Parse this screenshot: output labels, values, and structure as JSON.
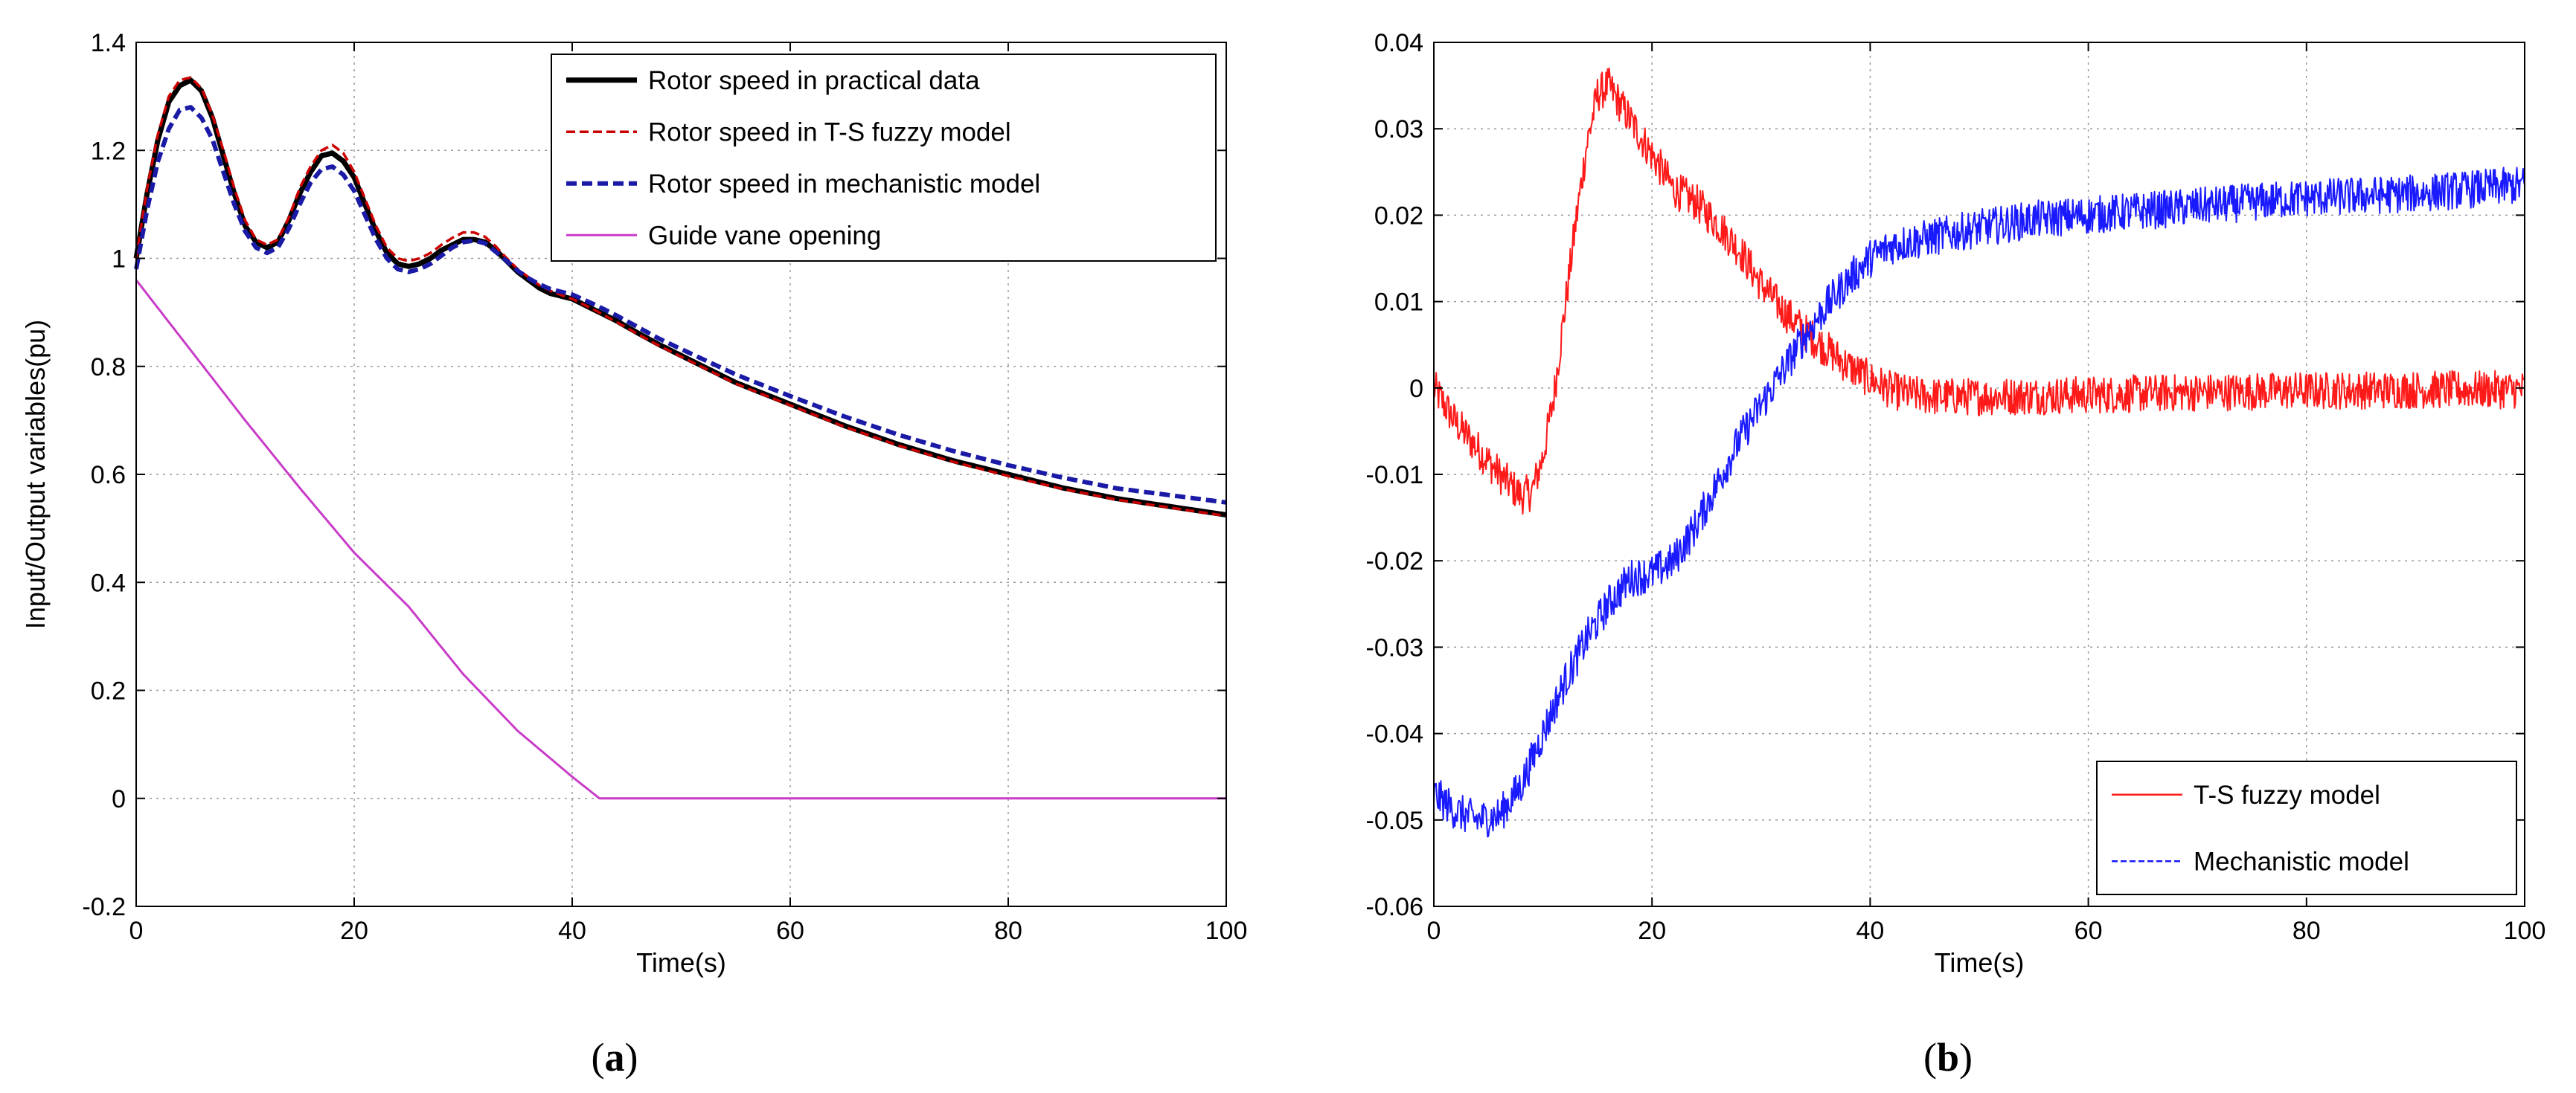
{
  "figure": {
    "panels": [
      {
        "caption_open": "(",
        "caption_letter": "a",
        "caption_close": ")"
      },
      {
        "caption_open": "(",
        "caption_letter": "b",
        "caption_close": ")"
      }
    ]
  },
  "chart_data": [
    {
      "type": "line",
      "title": "",
      "xlabel": "Time(s)",
      "ylabel": "Input/Output variables(pu)",
      "xlim": [
        0,
        100
      ],
      "ylim": [
        -0.2,
        1.4
      ],
      "xticks": [
        0,
        20,
        40,
        60,
        80,
        100
      ],
      "yticks": [
        -0.2,
        0,
        0.2,
        0.4,
        0.6,
        0.8,
        1,
        1.2,
        1.4
      ],
      "xtick_labels": [
        "0",
        "20",
        "40",
        "60",
        "80",
        "100"
      ],
      "ytick_labels": [
        "-0.2",
        "0",
        "0.2",
        "0.4",
        "0.6",
        "0.8",
        "1",
        "1.2",
        "1.4"
      ],
      "grid": true,
      "legend_position": "top-right",
      "series": [
        {
          "name": "Rotor speed in practical data",
          "color": "#000000",
          "style": "solid-thick",
          "x": [
            0,
            1,
            2,
            3,
            4,
            5,
            6,
            7,
            8,
            9,
            10,
            11,
            12,
            13,
            14,
            15,
            16,
            17,
            18,
            19,
            20,
            21,
            22,
            23,
            24,
            25,
            26,
            27,
            28,
            29,
            30,
            31,
            32,
            33,
            34,
            35,
            36,
            37,
            38,
            39,
            40,
            42,
            44,
            46,
            48,
            50,
            55,
            60,
            65,
            70,
            75,
            80,
            85,
            90,
            95,
            100
          ],
          "y": [
            1.0,
            1.12,
            1.22,
            1.29,
            1.32,
            1.33,
            1.31,
            1.26,
            1.19,
            1.12,
            1.06,
            1.03,
            1.02,
            1.03,
            1.07,
            1.12,
            1.16,
            1.19,
            1.195,
            1.18,
            1.15,
            1.1,
            1.05,
            1.01,
            0.99,
            0.985,
            0.99,
            1.0,
            1.015,
            1.025,
            1.035,
            1.035,
            1.03,
            1.015,
            0.995,
            0.975,
            0.96,
            0.945,
            0.935,
            0.93,
            0.925,
            0.905,
            0.885,
            0.862,
            0.84,
            0.82,
            0.77,
            0.73,
            0.69,
            0.655,
            0.625,
            0.6,
            0.575,
            0.555,
            0.54,
            0.525
          ]
        },
        {
          "name": "Rotor speed in T-S fuzzy model",
          "color": "#cc0000",
          "style": "dashed",
          "x": [
            0,
            1,
            2,
            3,
            4,
            5,
            6,
            7,
            8,
            9,
            10,
            11,
            12,
            13,
            14,
            15,
            16,
            17,
            18,
            19,
            20,
            21,
            22,
            23,
            24,
            25,
            26,
            27,
            28,
            29,
            30,
            31,
            32,
            33,
            34,
            35,
            36,
            37,
            38,
            39,
            40,
            42,
            44,
            46,
            48,
            50,
            55,
            60,
            65,
            70,
            75,
            80,
            85,
            90,
            95,
            100
          ],
          "y": [
            1.0,
            1.13,
            1.23,
            1.3,
            1.33,
            1.335,
            1.315,
            1.265,
            1.2,
            1.13,
            1.07,
            1.035,
            1.025,
            1.035,
            1.075,
            1.13,
            1.17,
            1.2,
            1.21,
            1.195,
            1.16,
            1.11,
            1.06,
            1.02,
            1.0,
            0.995,
            1.0,
            1.01,
            1.025,
            1.038,
            1.048,
            1.048,
            1.04,
            1.022,
            1.0,
            0.98,
            0.965,
            0.95,
            0.94,
            0.932,
            0.925,
            0.905,
            0.883,
            0.86,
            0.838,
            0.818,
            0.768,
            0.728,
            0.688,
            0.653,
            0.623,
            0.597,
            0.573,
            0.553,
            0.538,
            0.523
          ]
        },
        {
          "name": "Rotor speed in mechanistic model",
          "color": "#1a1aa6",
          "style": "dashed-thick",
          "x": [
            0,
            1,
            2,
            3,
            4,
            5,
            6,
            7,
            8,
            9,
            10,
            11,
            12,
            13,
            14,
            15,
            16,
            17,
            18,
            19,
            20,
            21,
            22,
            23,
            24,
            25,
            26,
            27,
            28,
            29,
            30,
            31,
            32,
            33,
            34,
            35,
            36,
            37,
            38,
            39,
            40,
            42,
            44,
            46,
            48,
            50,
            55,
            60,
            65,
            70,
            75,
            80,
            85,
            90,
            95,
            100
          ],
          "y": [
            0.98,
            1.09,
            1.18,
            1.24,
            1.275,
            1.28,
            1.26,
            1.22,
            1.16,
            1.1,
            1.05,
            1.02,
            1.01,
            1.02,
            1.055,
            1.1,
            1.14,
            1.165,
            1.17,
            1.155,
            1.125,
            1.08,
            1.035,
            1.0,
            0.98,
            0.975,
            0.98,
            0.99,
            1.005,
            1.02,
            1.03,
            1.033,
            1.028,
            1.012,
            0.995,
            0.977,
            0.963,
            0.952,
            0.943,
            0.938,
            0.933,
            0.915,
            0.895,
            0.873,
            0.851,
            0.832,
            0.785,
            0.745,
            0.707,
            0.673,
            0.643,
            0.617,
            0.594,
            0.574,
            0.561,
            0.548
          ]
        },
        {
          "name": "Guide vane opening",
          "color": "#c83cc8",
          "style": "solid",
          "x": [
            0,
            5,
            10,
            15,
            20,
            25,
            30,
            35,
            40,
            42.5,
            45,
            50,
            60,
            70,
            80,
            90,
            100
          ],
          "y": [
            0.96,
            0.83,
            0.7,
            0.575,
            0.455,
            0.355,
            0.23,
            0.125,
            0.04,
            0.0,
            0.0,
            0.0,
            0.0,
            0.0,
            0.0,
            0.0,
            0.0
          ]
        }
      ]
    },
    {
      "type": "line",
      "title": "",
      "xlabel": "Time(s)",
      "ylabel": "",
      "xlim": [
        0,
        100
      ],
      "ylim": [
        -0.06,
        0.04
      ],
      "xticks": [
        0,
        20,
        40,
        60,
        80,
        100
      ],
      "yticks": [
        -0.06,
        -0.05,
        -0.04,
        -0.03,
        -0.02,
        -0.01,
        0,
        0.01,
        0.02,
        0.03,
        0.04
      ],
      "xtick_labels": [
        "0",
        "20",
        "40",
        "60",
        "80",
        "100"
      ],
      "ytick_labels": [
        "-0.06",
        "-0.05",
        "-0.04",
        "-0.03",
        "-0.02",
        "-0.01",
        "0",
        "0.01",
        "0.02",
        "0.03",
        "0.04"
      ],
      "grid": true,
      "legend_position": "bottom-right",
      "noise": true,
      "series": [
        {
          "name": "T-S fuzzy model",
          "color": "#ff1a1a",
          "style": "solid-noisy",
          "noise_amplitude": 0.0022,
          "x": [
            0,
            2,
            4,
            6,
            8,
            9,
            10,
            11,
            12,
            13,
            14,
            15,
            16,
            18,
            20,
            22,
            24,
            26,
            28,
            30,
            32,
            34,
            36,
            38,
            40,
            42,
            44,
            46,
            50,
            60,
            70,
            80,
            90,
            100
          ],
          "y": [
            0.0,
            -0.004,
            -0.007,
            -0.01,
            -0.0125,
            -0.012,
            -0.008,
            -0.001,
            0.009,
            0.019,
            0.028,
            0.034,
            0.035,
            0.031,
            0.027,
            0.023,
            0.0215,
            0.019,
            0.016,
            0.012,
            0.009,
            0.0065,
            0.0045,
            0.0025,
            0.001,
            -0.0003,
            -0.0008,
            -0.001,
            -0.001,
            -0.0008,
            -0.0005,
            -0.0003,
            -0.0002,
            -0.0002
          ]
        },
        {
          "name": "Mechanistic model",
          "color": "#1a1aff",
          "style": "dashed-noisy",
          "noise_amplitude": 0.0022,
          "x": [
            0,
            2,
            4,
            6,
            8,
            10,
            12,
            14,
            16,
            18,
            20,
            22,
            24,
            26,
            28,
            30,
            32,
            34,
            36,
            38,
            40,
            42,
            44,
            46,
            48,
            50,
            55,
            60,
            70,
            80,
            90,
            100
          ],
          "y": [
            -0.047,
            -0.049,
            -0.05,
            -0.0495,
            -0.046,
            -0.04,
            -0.034,
            -0.029,
            -0.025,
            -0.022,
            -0.0215,
            -0.02,
            -0.016,
            -0.011,
            -0.006,
            -0.002,
            0.002,
            0.006,
            0.0095,
            0.0125,
            0.015,
            0.0165,
            0.017,
            0.0175,
            0.018,
            0.0185,
            0.0195,
            0.02,
            0.021,
            0.022,
            0.0225,
            0.0235
          ]
        }
      ]
    }
  ]
}
